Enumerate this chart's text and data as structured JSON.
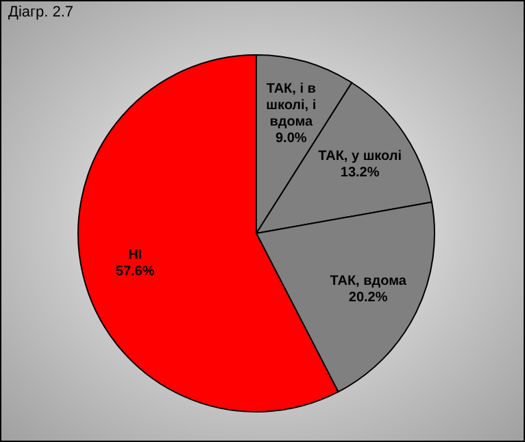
{
  "chart_data": {
    "type": "pie",
    "title": "Діагр. 2.7",
    "categories": [
      "ТАК, і в школі, і вдома",
      "ТАК, у школі",
      "ТАК, вдома",
      "НІ"
    ],
    "values": [
      9.0,
      13.2,
      20.2,
      57.6
    ],
    "colors": [
      "#808080",
      "#808080",
      "#808080",
      "#ff0000"
    ],
    "value_labels": [
      "9.0%",
      "13.2%",
      "20.2%",
      "57.6%"
    ],
    "legend": false
  }
}
